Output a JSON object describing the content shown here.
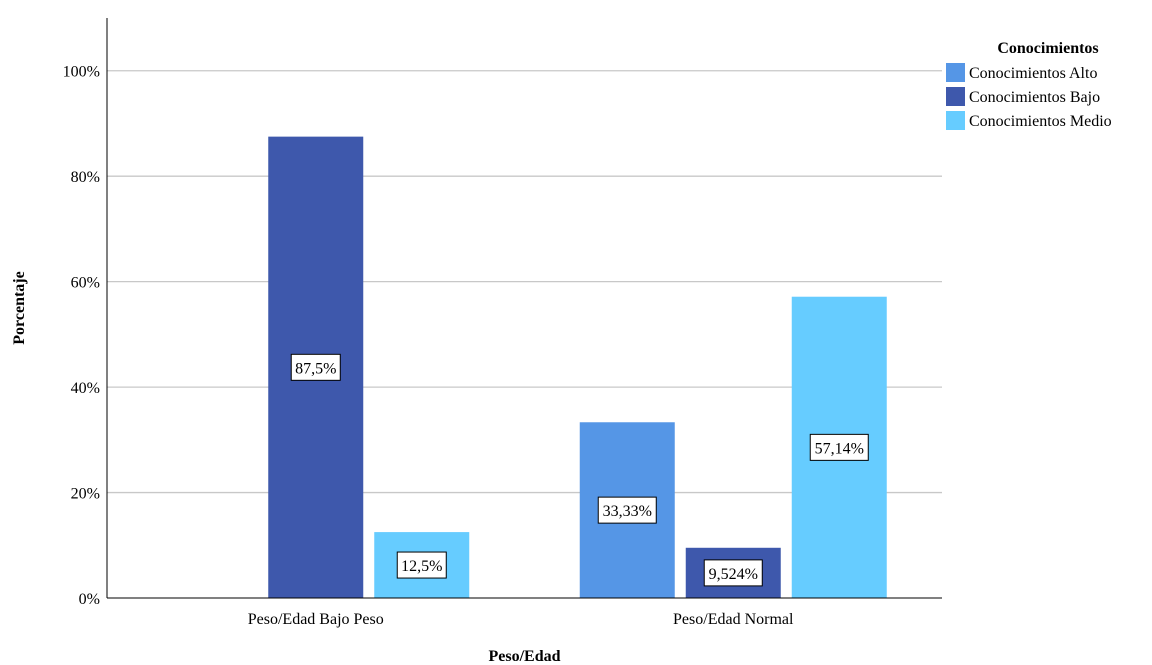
{
  "chart_data": {
    "type": "bar",
    "title": "",
    "xlabel": "Peso/Edad",
    "ylabel": "Porcentaje",
    "ylim": [
      0,
      110
    ],
    "yticks": [
      0,
      20,
      40,
      60,
      80,
      100
    ],
    "ytick_labels": [
      "0%",
      "20%",
      "40%",
      "60%",
      "80%",
      "100%"
    ],
    "categories": [
      "Peso/Edad Bajo Peso",
      "Peso/Edad Normal"
    ],
    "grid": true,
    "legend_position": "top-right",
    "legend_title": "Conocimientos",
    "series": [
      {
        "name": "Conocimientos Alto",
        "color": "#5596e6",
        "values": [
          null,
          33.33
        ],
        "labels": [
          "",
          "33,33%"
        ]
      },
      {
        "name": "Conocimientos Bajo",
        "color": "#3e58ac",
        "values": [
          87.5,
          9.524
        ],
        "labels": [
          "87,5%",
          "9,524%"
        ]
      },
      {
        "name": "Conocimientos Medio",
        "color": "#66ccff",
        "values": [
          12.5,
          57.14
        ],
        "labels": [
          "12,5%",
          "57,14%"
        ]
      }
    ]
  }
}
